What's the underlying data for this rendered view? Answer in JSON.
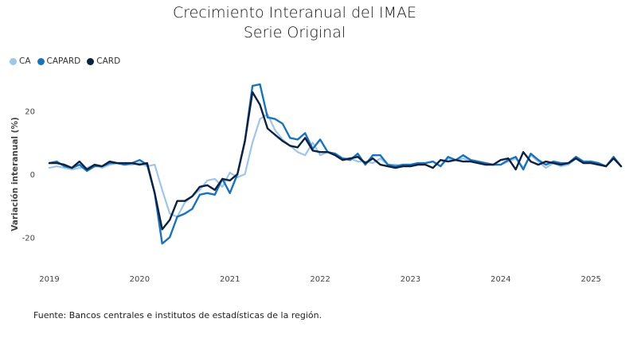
{
  "title_lines": [
    "Crecimiento Interanual del IMAE",
    "Serie Original"
  ],
  "source_note": "Fuente: Bancos centrales e institutos de estadísticas de la región.",
  "chart_data": {
    "type": "line",
    "title": "Crecimiento Interanual del IMAE",
    "subtitle": "Serie Original",
    "xlabel": "",
    "ylabel": "Variación interanual (%)",
    "ylim": [
      -30,
      30
    ],
    "yticks": [
      -20,
      0,
      20
    ],
    "xticks": [
      {
        "label": "2019",
        "at": "2019-01"
      },
      {
        "label": "2020",
        "at": "2020-01"
      },
      {
        "label": "2021",
        "at": "2021-01"
      },
      {
        "label": "2022",
        "at": "2022-01"
      },
      {
        "label": "2023",
        "at": "2023-01"
      },
      {
        "label": "2024",
        "at": "2024-01"
      },
      {
        "label": "2025",
        "at": "2025-01"
      }
    ],
    "grid": false,
    "legend": "top-left",
    "x": [
      "2019-01",
      "2019-02",
      "2019-03",
      "2019-04",
      "2019-05",
      "2019-06",
      "2019-07",
      "2019-08",
      "2019-09",
      "2019-10",
      "2019-11",
      "2019-12",
      "2020-01",
      "2020-02",
      "2020-03",
      "2020-04",
      "2020-05",
      "2020-06",
      "2020-07",
      "2020-08",
      "2020-09",
      "2020-10",
      "2020-11",
      "2020-12",
      "2021-01",
      "2021-02",
      "2021-03",
      "2021-04",
      "2021-05",
      "2021-06",
      "2021-07",
      "2021-08",
      "2021-09",
      "2021-10",
      "2021-11",
      "2021-12",
      "2022-01",
      "2022-02",
      "2022-03",
      "2022-04",
      "2022-05",
      "2022-06",
      "2022-07",
      "2022-08",
      "2022-09",
      "2022-10",
      "2022-11",
      "2022-12",
      "2023-01",
      "2023-02",
      "2023-03",
      "2023-04",
      "2023-05",
      "2023-06",
      "2023-07",
      "2023-08",
      "2023-09",
      "2023-10",
      "2023-11",
      "2023-12",
      "2024-01",
      "2024-02",
      "2024-03",
      "2024-04",
      "2024-05",
      "2024-06",
      "2024-07",
      "2024-08",
      "2024-09",
      "2024-10",
      "2024-11",
      "2024-12",
      "2025-01",
      "2025-02",
      "2025-03",
      "2025-04",
      "2025-05"
    ],
    "series": [
      {
        "name": "CA",
        "color": "#9fc5e8",
        "values": [
          2,
          2.5,
          2,
          1.5,
          2,
          2,
          3,
          2,
          3,
          3.5,
          3,
          3,
          3.5,
          2.5,
          3,
          -5,
          -12.5,
          -13.5,
          -9,
          -7,
          -5,
          -2,
          -1.5,
          -4,
          0.5,
          -1,
          0,
          10,
          17.5,
          19,
          14,
          11,
          9,
          7,
          6,
          10,
          6,
          7,
          6,
          5,
          5,
          4,
          4,
          3.5,
          5,
          3,
          3,
          2.5,
          3,
          3,
          3.5,
          4,
          2.5,
          5,
          4.5,
          5,
          4,
          3.5,
          3,
          3,
          3,
          4,
          5,
          2,
          6,
          4,
          2,
          3.5,
          2.5,
          3,
          5,
          4,
          3.5,
          3,
          2.5,
          5,
          2.5
        ]
      },
      {
        "name": "CAPARD",
        "color": "#1a73b8",
        "values": [
          3.5,
          4,
          2.5,
          2,
          3,
          1,
          2.5,
          2.5,
          3.5,
          3.5,
          3,
          3.5,
          4.5,
          3,
          -6,
          -22,
          -20,
          -13.5,
          -12.5,
          -11,
          -6.5,
          -6,
          -6.5,
          -1.5,
          -6,
          0,
          10.5,
          28,
          28.5,
          18,
          17.5,
          16,
          11.5,
          11,
          13,
          8,
          11,
          7,
          6.5,
          5,
          4.5,
          6.5,
          3,
          6,
          6,
          3,
          2.5,
          3,
          3,
          3.5,
          3.5,
          4,
          2.5,
          5.5,
          4.5,
          6,
          4.5,
          4,
          3.5,
          3,
          3,
          4.5,
          5.5,
          1.5,
          6.5,
          4.5,
          3,
          4,
          3.5,
          3.5,
          5.5,
          4,
          4,
          3.5,
          2.5,
          5.5,
          2.5
        ]
      },
      {
        "name": "CARD",
        "color": "#0d2240",
        "values": [
          3.5,
          3.5,
          3,
          2,
          4,
          1.5,
          3,
          2.5,
          4,
          3.5,
          3.5,
          3.5,
          3,
          3.5,
          -6,
          -17.5,
          -14.5,
          -8.5,
          -8.5,
          -7,
          -4,
          -3.5,
          -5,
          -1.5,
          -2,
          0,
          10.5,
          26,
          22,
          14.5,
          12.5,
          10.5,
          9,
          8.5,
          11.5,
          7.5,
          7,
          7,
          6,
          4.5,
          5,
          5.5,
          3.5,
          5,
          3,
          2.5,
          2,
          2.5,
          2.5,
          3,
          3,
          2,
          4.5,
          4,
          4.5,
          4,
          4,
          3.5,
          3,
          3,
          4.5,
          5,
          1.5,
          7,
          4,
          3,
          4,
          3.5,
          3,
          3.5,
          5,
          3.5,
          3.5,
          3,
          2.5,
          5,
          2.5
        ]
      }
    ]
  }
}
